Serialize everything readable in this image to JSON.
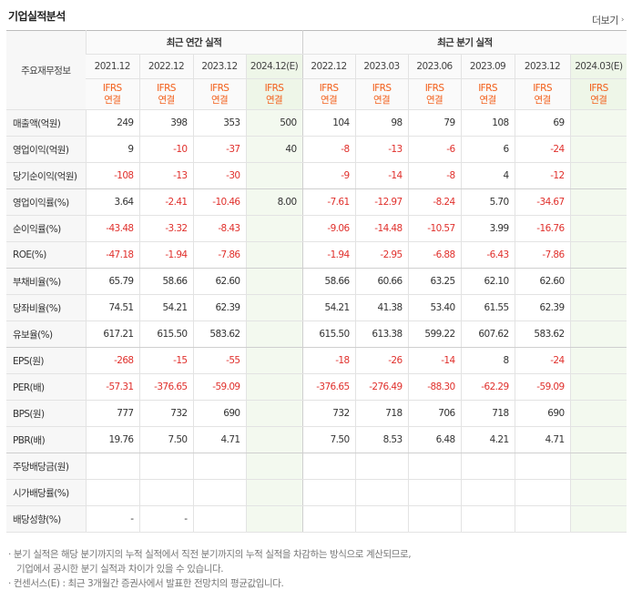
{
  "title": "기업실적분석",
  "more_label": "더보기",
  "table": {
    "row_header_label": "주요재무정보",
    "groups": [
      {
        "label": "최근 연간 실적",
        "span": 4
      },
      {
        "label": "최근 분기 실적",
        "span": 6
      }
    ],
    "periods": [
      "2021.12",
      "2022.12",
      "2023.12",
      "2024.12(E)",
      "2022.12",
      "2023.03",
      "2023.06",
      "2023.09",
      "2023.12",
      "2024.03(E)"
    ],
    "ifrs": {
      "line1": "IFRS",
      "line2": "연결"
    },
    "rows": [
      {
        "label": "매출액(억원)",
        "values": [
          "249",
          "398",
          "353",
          "500",
          "104",
          "98",
          "79",
          "108",
          "69",
          ""
        ]
      },
      {
        "label": "영업이익(억원)",
        "values": [
          "9",
          "-10",
          "-37",
          "40",
          "-8",
          "-13",
          "-6",
          "6",
          "-24",
          ""
        ]
      },
      {
        "label": "당기순이익(억원)",
        "values": [
          "-108",
          "-13",
          "-30",
          "",
          "-9",
          "-14",
          "-8",
          "4",
          "-12",
          ""
        ]
      },
      {
        "label": "영업이익률(%)",
        "values": [
          "3.64",
          "-2.41",
          "-10.46",
          "8.00",
          "-7.61",
          "-12.97",
          "-8.24",
          "5.70",
          "-34.67",
          ""
        ]
      },
      {
        "label": "순이익률(%)",
        "values": [
          "-43.48",
          "-3.32",
          "-8.43",
          "",
          "-9.06",
          "-14.48",
          "-10.57",
          "3.99",
          "-16.76",
          ""
        ]
      },
      {
        "label": "ROE(%)",
        "values": [
          "-47.18",
          "-1.94",
          "-7.86",
          "",
          "-1.94",
          "-2.95",
          "-6.88",
          "-6.43",
          "-7.86",
          ""
        ]
      },
      {
        "label": "부채비율(%)",
        "values": [
          "65.79",
          "58.66",
          "62.60",
          "",
          "58.66",
          "60.66",
          "63.25",
          "62.10",
          "62.60",
          ""
        ]
      },
      {
        "label": "당좌비율(%)",
        "values": [
          "74.51",
          "54.21",
          "62.39",
          "",
          "54.21",
          "41.38",
          "53.40",
          "61.55",
          "62.39",
          ""
        ]
      },
      {
        "label": "유보율(%)",
        "values": [
          "617.21",
          "615.50",
          "583.62",
          "",
          "615.50",
          "613.38",
          "599.22",
          "607.62",
          "583.62",
          ""
        ]
      },
      {
        "label": "EPS(원)",
        "values": [
          "-268",
          "-15",
          "-55",
          "",
          "-18",
          "-26",
          "-14",
          "8",
          "-24",
          ""
        ]
      },
      {
        "label": "PER(배)",
        "values": [
          "-57.31",
          "-376.65",
          "-59.09",
          "",
          "-376.65",
          "-276.49",
          "-88.30",
          "-62.29",
          "-59.09",
          ""
        ]
      },
      {
        "label": "BPS(원)",
        "values": [
          "777",
          "732",
          "690",
          "",
          "732",
          "718",
          "706",
          "718",
          "690",
          ""
        ]
      },
      {
        "label": "PBR(배)",
        "values": [
          "19.76",
          "7.50",
          "4.71",
          "",
          "7.50",
          "8.53",
          "6.48",
          "4.21",
          "4.71",
          ""
        ]
      },
      {
        "label": "주당배당금(원)",
        "values": [
          "",
          "",
          "",
          "",
          "",
          "",
          "",
          "",
          "",
          ""
        ]
      },
      {
        "label": "시가배당률(%)",
        "values": [
          "",
          "",
          "",
          "",
          "",
          "",
          "",
          "",
          "",
          ""
        ]
      },
      {
        "label": "배당성향(%)",
        "values": [
          "-",
          "-",
          "",
          "",
          "",
          "",
          "",
          "",
          "",
          ""
        ]
      }
    ]
  },
  "notes": {
    "line1": "· 분기 실적은 해당 분기까지의 누적 실적에서 직전 분기까지의 누적 실적을 차감하는 방식으로 계산되므로,",
    "line2": "기업에서 공시한 분기 실적과 차이가 있을 수 있습니다.",
    "line3": "· 컨센서스(E) : 최근 3개월간 증권사에서 발표한 전망치의 평균값입니다."
  },
  "colors": {
    "negative": "#e0302c",
    "ifrs": "#f25f1a",
    "estimate_bg": "#f3f9ef"
  }
}
